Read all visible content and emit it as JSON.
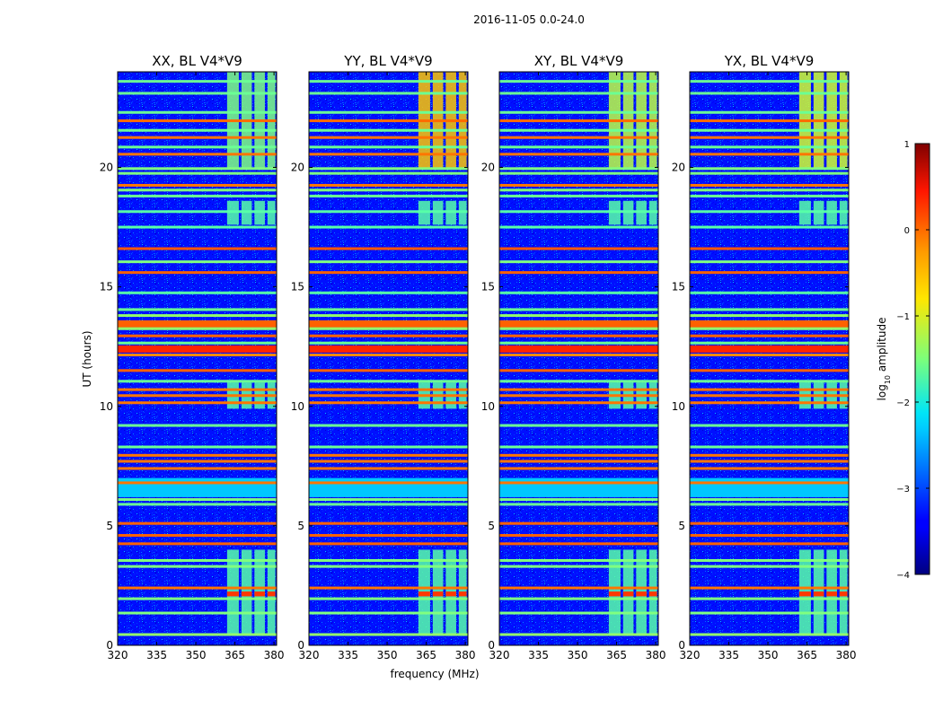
{
  "chart_data": {
    "type": "heatmap",
    "suptitle": "2016-11-05 0.0-24.0",
    "xlabel": "frequency (MHz)",
    "ylabel": "UT (hours)",
    "xlim": [
      320,
      381
    ],
    "ylim": [
      0,
      24
    ],
    "xticks": [
      320,
      335,
      350,
      365,
      380
    ],
    "yticks": [
      0,
      5,
      10,
      15,
      20
    ],
    "colorbar": {
      "label": "log10 amplitude",
      "label_base": "log",
      "label_sub": "10",
      "label_rest": " amplitude",
      "range": [
        -4,
        1
      ],
      "ticks": [
        1,
        0,
        -1,
        -2,
        -3,
        -4
      ],
      "tick_labels": [
        "1",
        "0",
        "−1",
        "−2",
        "−3",
        "−4"
      ],
      "colormap": "jet"
    },
    "background_level": -3.3,
    "panels": [
      {
        "title": "XX, BL V4*V9",
        "polarization": "XX",
        "band_level": -1.7,
        "band_level_late": -1.5
      },
      {
        "title": "YY, BL V4*V9",
        "polarization": "YY",
        "band_level": -1.7,
        "band_level_late": -0.6
      },
      {
        "title": "XY, BL V4*V9",
        "polarization": "XY",
        "band_level": -1.7,
        "band_level_late": -1.2
      },
      {
        "title": "YX, BL V4*V9",
        "polarization": "YX",
        "band_level": -1.7,
        "band_level_late": -1.1
      }
    ],
    "rfi_band_columns_mhz": [
      [
        362,
        366.5
      ],
      [
        367.5,
        371.5
      ],
      [
        372.5,
        376.5
      ],
      [
        377.5,
        380.5
      ]
    ],
    "band_active_hours": [
      [
        0.4,
        4.0
      ],
      [
        9.9,
        11.0
      ],
      [
        17.6,
        18.6
      ],
      [
        20.0,
        24.0
      ]
    ],
    "hot_band_hours": [
      2.05,
      2.25
    ],
    "hot_band_level": 0.1,
    "rfi_time_lines": [
      {
        "t": 0.45,
        "level": -1.4
      },
      {
        "t": 1.35,
        "level": -1.5
      },
      {
        "t": 1.95,
        "level": -1.5
      },
      {
        "t": 2.4,
        "level": -0.2
      },
      {
        "t": 3.3,
        "level": -1.5
      },
      {
        "t": 3.55,
        "level": -1.5
      },
      {
        "t": 4.25,
        "level": -0.1
      },
      {
        "t": 4.6,
        "level": -0.1
      },
      {
        "t": 5.1,
        "level": -0.1
      },
      {
        "t": 5.9,
        "level": -1.6
      },
      {
        "t": 6.1,
        "level": -1.5
      },
      {
        "t": 6.8,
        "level": -0.2
      },
      {
        "t": 7.4,
        "level": -0.2
      },
      {
        "t": 7.7,
        "level": -0.2
      },
      {
        "t": 7.95,
        "level": -0.2
      },
      {
        "t": 8.3,
        "level": -1.6
      },
      {
        "t": 9.2,
        "level": -1.6
      },
      {
        "t": 10.15,
        "level": -0.2
      },
      {
        "t": 10.45,
        "level": -0.2
      },
      {
        "t": 10.7,
        "level": -0.2
      },
      {
        "t": 11.05,
        "level": -1.6
      },
      {
        "t": 11.5,
        "level": -0.1
      },
      {
        "t": 12.15,
        "level": -0.3
      },
      {
        "t": 12.4,
        "level": 0.2
      },
      {
        "t": 12.65,
        "level": -1.6
      },
      {
        "t": 12.95,
        "level": -0.1
      },
      {
        "t": 13.25,
        "level": -1.4
      },
      {
        "t": 13.5,
        "level": -0.1
      },
      {
        "t": 13.8,
        "level": -1.4
      },
      {
        "t": 14.05,
        "level": -1.6
      },
      {
        "t": 14.75,
        "level": -1.7
      },
      {
        "t": 15.6,
        "level": -0.1
      },
      {
        "t": 16.05,
        "level": -1.5
      },
      {
        "t": 16.6,
        "level": -0.05
      },
      {
        "t": 17.5,
        "level": -1.7
      },
      {
        "t": 18.15,
        "level": -1.7
      },
      {
        "t": 18.8,
        "level": -1.6
      },
      {
        "t": 19.05,
        "level": -1.5
      },
      {
        "t": 19.25,
        "level": -0.2
      },
      {
        "t": 19.75,
        "level": -1.5
      },
      {
        "t": 19.95,
        "level": -1.5
      },
      {
        "t": 20.55,
        "level": -0.2
      },
      {
        "t": 20.85,
        "level": -1.6
      },
      {
        "t": 21.25,
        "level": -0.2
      },
      {
        "t": 21.55,
        "level": -1.6
      },
      {
        "t": 21.95,
        "level": -0.15
      },
      {
        "t": 22.3,
        "level": -1.6
      },
      {
        "t": 23.1,
        "level": -1.6
      },
      {
        "t": 23.6,
        "level": -1.6
      }
    ],
    "wide_rfi_bands": [
      {
        "from": 12.25,
        "to": 12.55,
        "level": 0.2
      },
      {
        "from": 13.3,
        "to": 13.6,
        "level": -0.1
      },
      {
        "from": 6.2,
        "to": 7.0,
        "level": -2.4
      }
    ]
  }
}
